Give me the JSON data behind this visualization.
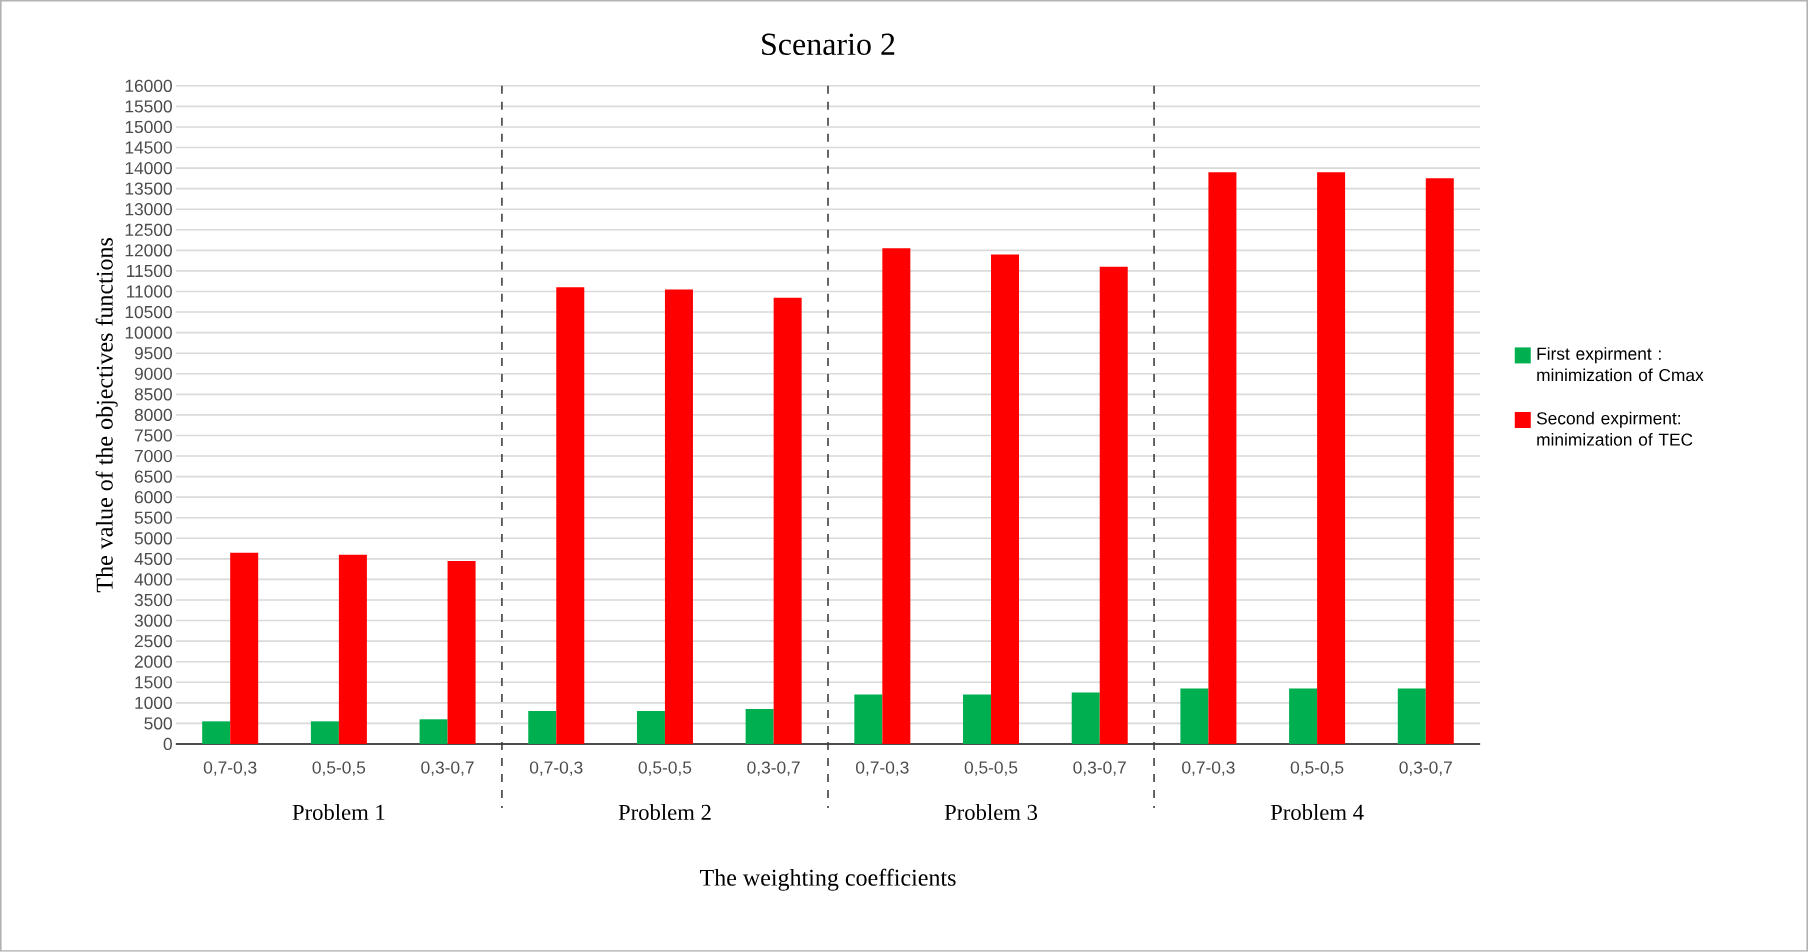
{
  "chart_data": {
    "type": "bar",
    "title": "Scenario 2",
    "xlabel": "The weighting coefficients",
    "ylabel": "The value of the objectives functions",
    "categories": [
      "0,7-0,3",
      "0,5-0,5",
      "0,3-0,7",
      "0,7-0,3",
      "0,5-0,5",
      "0,3-0,7",
      "0,7-0,3",
      "0,5-0,5",
      "0,3-0,7",
      "0,7-0,3",
      "0,5-0,5",
      "0,3-0,7"
    ],
    "series": [
      {
        "name": "First expirment : minimization of Cmax",
        "color": "#00b050",
        "values": [
          550,
          550,
          600,
          800,
          800,
          850,
          1200,
          1200,
          1250,
          1350,
          1350,
          1350
        ]
      },
      {
        "name": "Second expirment: minimization of TEC",
        "color": "#ff0000",
        "values": [
          4650,
          4600,
          4450,
          11100,
          11050,
          10850,
          12050,
          11900,
          11600,
          13900,
          13900,
          13750
        ]
      }
    ],
    "annotations": [
      "Problem 1",
      "Problem 2",
      "Problem 3",
      "Problem 4"
    ],
    "ylim": [
      0,
      16000
    ],
    "yticks": [
      0,
      500,
      1000,
      1500,
      2000,
      2500,
      3000,
      3500,
      4000,
      4500,
      5000,
      5500,
      6000,
      6500,
      7000,
      7500,
      8000,
      8500,
      9000,
      9500,
      10000,
      10500,
      11000,
      11500,
      12000,
      12500,
      13000,
      13500,
      14000,
      14500,
      15000,
      15500,
      16000
    ],
    "grid": "y",
    "legend": "right"
  }
}
